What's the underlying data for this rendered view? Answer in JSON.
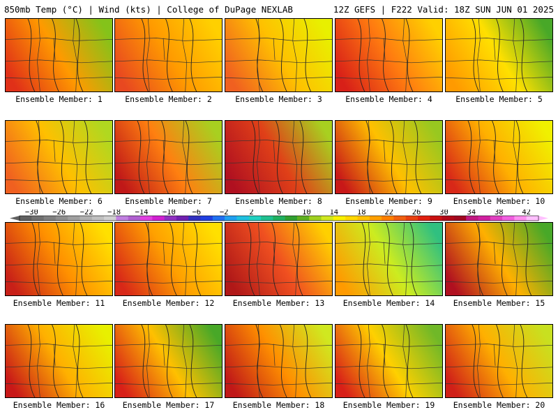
{
  "header": {
    "left": "850mb Temp (°C) | Wind (kts) | College of DuPage NEXLAB",
    "right": "12Z GEFS | F222 Valid: 18Z SUN JUN 01 2025"
  },
  "members": [
    {
      "label": "Ensemble Member: 1",
      "colors": [
        "#e03018",
        "#ff9a00",
        "#84c31a"
      ]
    },
    {
      "label": "Ensemble Member: 2",
      "colors": [
        "#e84820",
        "#ff9a00",
        "#ffd000"
      ]
    },
    {
      "label": "Ensemble Member: 3",
      "colors": [
        "#f06020",
        "#ffc000",
        "#e8f000"
      ]
    },
    {
      "label": "Ensemble Member: 4",
      "colors": [
        "#d82018",
        "#ff7a10",
        "#ffd000"
      ]
    },
    {
      "label": "Ensemble Member: 5",
      "colors": [
        "#ff9a00",
        "#ffe000",
        "#48a828"
      ]
    },
    {
      "label": "Ensemble Member: 6",
      "colors": [
        "#f06020",
        "#ffc000",
        "#b0d820"
      ]
    },
    {
      "label": "Ensemble Member: 7",
      "colors": [
        "#c01818",
        "#ff8010",
        "#a8d020"
      ]
    },
    {
      "label": "Ensemble Member: 8",
      "colors": [
        "#b01020",
        "#e04018",
        "#a8d020"
      ]
    },
    {
      "label": "Ensemble Member: 9",
      "colors": [
        "#c81818",
        "#ffc000",
        "#98c820"
      ]
    },
    {
      "label": "Ensemble Member: 10",
      "colors": [
        "#d82818",
        "#ffb000",
        "#f0f000"
      ]
    },
    {
      "label": "Ensemble Member: 11",
      "colors": [
        "#c82018",
        "#ff9000",
        "#ffe000"
      ]
    },
    {
      "label": "Ensemble Member: 12",
      "colors": [
        "#d82818",
        "#ffa000",
        "#ffe000"
      ]
    },
    {
      "label": "Ensemble Member: 13",
      "colors": [
        "#b01818",
        "#f05020",
        "#ffd000"
      ]
    },
    {
      "label": "Ensemble Member: 14",
      "colors": [
        "#ff9a00",
        "#ccec20",
        "#30c080"
      ]
    },
    {
      "label": "Ensemble Member: 15",
      "colors": [
        "#b01020",
        "#ffb000",
        "#48a828"
      ]
    },
    {
      "label": "Ensemble Member: 16",
      "colors": [
        "#c81818",
        "#ffb000",
        "#e8f000"
      ]
    },
    {
      "label": "Ensemble Member: 17",
      "colors": [
        "#d82018",
        "#ffc000",
        "#48a828"
      ]
    },
    {
      "label": "Ensemble Member: 18",
      "colors": [
        "#c01818",
        "#ff9000",
        "#d0e820"
      ]
    },
    {
      "label": "Ensemble Member: 19",
      "colors": [
        "#d82018",
        "#ffd000",
        "#70b828"
      ]
    },
    {
      "label": "Ensemble Member: 20",
      "colors": [
        "#d02018",
        "#ffb000",
        "#c8e020"
      ]
    }
  ],
  "colorbar": {
    "ticks": [
      "−30",
      "−26",
      "−22",
      "−18",
      "−14",
      "−10",
      "−6",
      "−2",
      "2",
      "6",
      "10",
      "14",
      "18",
      "22",
      "26",
      "30",
      "34",
      "38",
      "42"
    ],
    "colors": [
      "#606060",
      "#707070",
      "#808080",
      "#909090",
      "#a0a0a0",
      "#b0b0b0",
      "#c0c0c0",
      "#d0d0d0",
      "#c080e0",
      "#b060d0",
      "#e040e0",
      "#d020d0",
      "#9030c0",
      "#7020b0",
      "#3030c0",
      "#2040e0",
      "#2070f0",
      "#20a0f0",
      "#20c0e0",
      "#20d0c0",
      "#20c090",
      "#20b060",
      "#30a030",
      "#60b020",
      "#a0d020",
      "#d0e820",
      "#f8f000",
      "#ffd800",
      "#ffc000",
      "#ffa000",
      "#ff8000",
      "#f06010",
      "#e84010",
      "#e02010",
      "#c81010",
      "#b00818",
      "#a00820",
      "#c01880",
      "#d020a0",
      "#e040c0",
      "#f060e0",
      "#ff90f0",
      "#ffc0ff"
    ]
  }
}
